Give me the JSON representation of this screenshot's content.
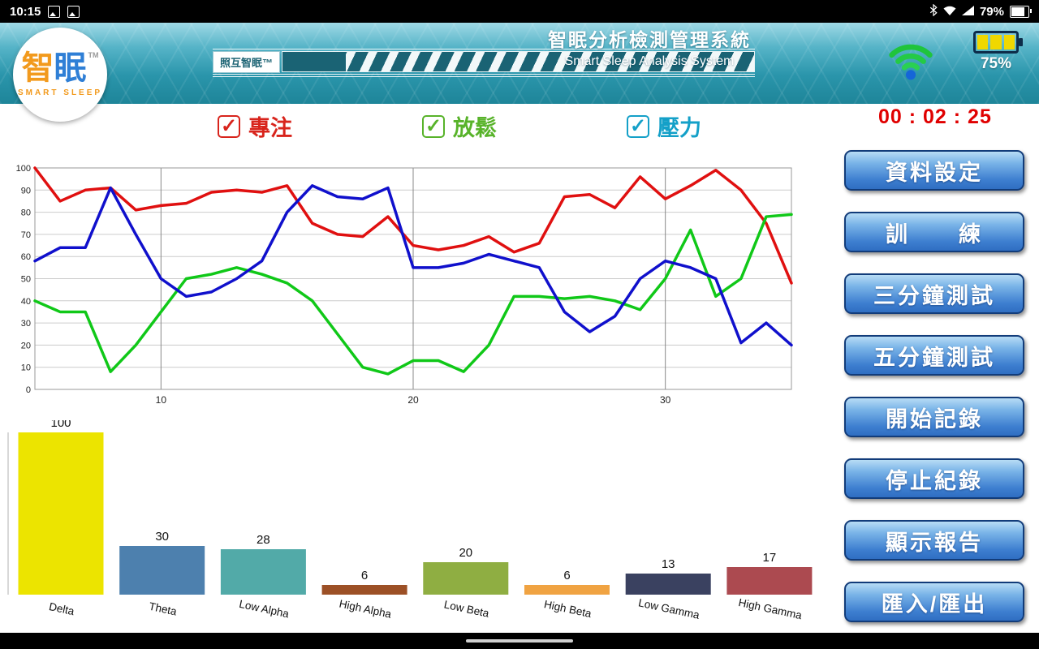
{
  "status_bar": {
    "time": "10:15",
    "battery_pct": "79%"
  },
  "header": {
    "logo": {
      "brand_cn_1": "智",
      "brand_cn_2": "眠",
      "tm": "TM",
      "brand_en": "SMART SLEEP"
    },
    "device_label": "照互智眠™",
    "title": "智眠分析檢測管理系統",
    "subtitle": "Smart Sleep Analysis System",
    "headset_battery": "75%"
  },
  "controls": {
    "check_glyph": "✓",
    "checkboxes": [
      {
        "label": "專注",
        "color": "#d8241c",
        "checked": true
      },
      {
        "label": "放鬆",
        "color": "#58b32a",
        "checked": true
      },
      {
        "label": "壓力",
        "color": "#14a0c8",
        "checked": true
      }
    ],
    "timer": "00 : 02 : 25",
    "timer_color": "#e00000"
  },
  "sidebar": {
    "buttons": [
      {
        "label": "資料設定"
      },
      {
        "label": "訓　　練"
      },
      {
        "label": "三分鐘測試"
      },
      {
        "label": "五分鐘測試"
      },
      {
        "label": "開始記錄"
      },
      {
        "label": "停止紀錄"
      },
      {
        "label": "顯示報告"
      },
      {
        "label": "匯入/匯出"
      }
    ]
  },
  "chart_data": [
    {
      "type": "line",
      "title": "",
      "x_range": [
        5,
        35
      ],
      "x_ticks": [
        10,
        20,
        30
      ],
      "ylim": [
        0,
        100
      ],
      "y_tick_step": 10,
      "grid": true,
      "legend_position": "none",
      "series": [
        {
          "name": "專注",
          "color": "#e01010",
          "values": [
            100,
            85,
            90,
            91,
            81,
            83,
            84,
            89,
            90,
            89,
            92,
            75,
            70,
            69,
            78,
            65,
            63,
            65,
            69,
            62,
            66,
            87,
            88,
            82,
            96,
            86,
            92,
            99,
            90,
            75,
            48
          ]
        },
        {
          "name": "放鬆",
          "color": "#10c818",
          "values": [
            40,
            35,
            35,
            8,
            20,
            35,
            50,
            52,
            55,
            52,
            48,
            40,
            25,
            10,
            7,
            13,
            13,
            8,
            20,
            42,
            42,
            41,
            42,
            40,
            36,
            50,
            72,
            42,
            50,
            78,
            79
          ]
        },
        {
          "name": "壓力",
          "color": "#1010cc",
          "values": [
            58,
            64,
            64,
            91,
            70,
            50,
            42,
            44,
            50,
            58,
            80,
            92,
            87,
            86,
            91,
            55,
            55,
            57,
            61,
            58,
            55,
            35,
            26,
            33,
            50,
            58,
            55,
            50,
            21,
            30,
            20
          ]
        }
      ]
    },
    {
      "type": "bar",
      "categories": [
        "Delta",
        "Theta",
        "Low Alpha",
        "High Alpha",
        "Low Beta",
        "High Beta",
        "Low Gamma",
        "High Gamma"
      ],
      "values": [
        100,
        30,
        28,
        6,
        20,
        6,
        13,
        17
      ],
      "colors": [
        "#ece400",
        "#4d80ae",
        "#52aaa8",
        "#9c5026",
        "#8fae42",
        "#f0a342",
        "#3a4160",
        "#ac4a50"
      ],
      "ylim": [
        0,
        100
      ],
      "title": "",
      "xlabel": "",
      "ylabel": ""
    }
  ]
}
